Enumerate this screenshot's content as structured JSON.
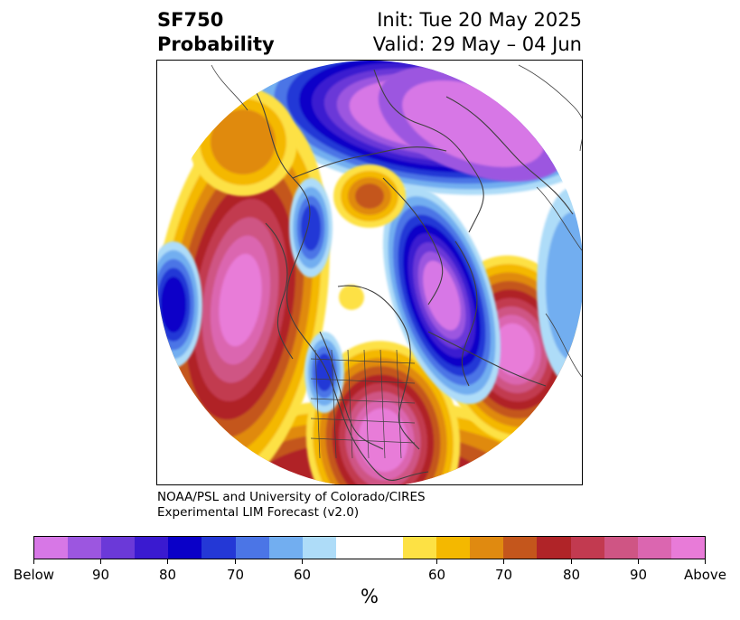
{
  "title": {
    "left_line1": "SF750",
    "left_line2": "Probability",
    "right_line1": "Init: Tue 20 May 2025",
    "right_line2": "Valid: 29 May – 04 Jun"
  },
  "credit": {
    "line1": "NOAA/PSL and University of Colorado/CIRES",
    "line2": "Experimental LIM Forecast (v2.0)"
  },
  "colorbar": {
    "colors": [
      "#d777e6",
      "#9c56e0",
      "#6b39d8",
      "#3a1ad0",
      "#0a00c8",
      "#2438d6",
      "#4b75e6",
      "#72aef0",
      "#aedcf8",
      "#ffffff",
      "#ffffff",
      "#fde144",
      "#f4b800",
      "#e08a10",
      "#c4561c",
      "#b02428",
      "#c23a50",
      "#cf5584",
      "#db66b0",
      "#e87bd8"
    ],
    "labels": [
      "Below",
      "90",
      "80",
      "70",
      "60",
      "60",
      "70",
      "80",
      "90",
      "Above"
    ],
    "unit": "%"
  },
  "map": {
    "palette": {
      "below": "#d777e6",
      "b90": "#9c56e0",
      "b85": "#6b39d8",
      "b80": "#3a1ad0",
      "b75": "#0a00c8",
      "b70": "#2438d6",
      "b65": "#4b75e6",
      "b60": "#72aef0",
      "b55": "#aedcf8",
      "a55": "#fde144",
      "a60": "#f4b800",
      "a65": "#e08a10",
      "a70": "#c4561c",
      "a75": "#b02428",
      "a80": "#c23a50",
      "a85": "#cf5584",
      "a90": "#db66b0",
      "above": "#e87bd8",
      "land": "#3f3f3f"
    }
  }
}
